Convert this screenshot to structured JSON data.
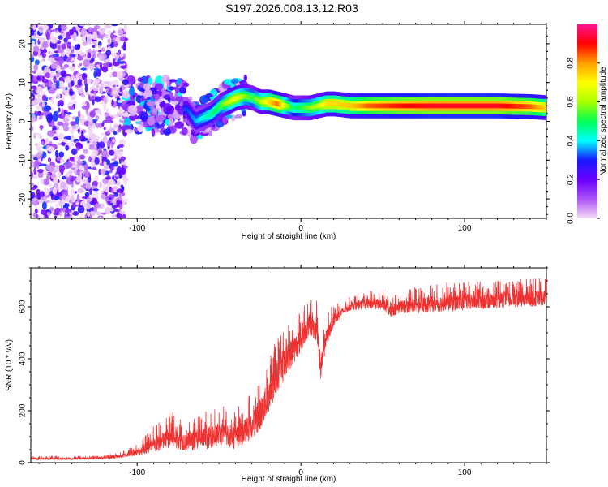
{
  "title": "S197.2026.008.13.12.R03",
  "chart_data": [
    {
      "type": "heatmap",
      "xlabel": "Height of straight line (km)",
      "ylabel": "Frequency (Hz)",
      "xlim": [
        -165,
        150
      ],
      "ylim": [
        -25,
        25
      ],
      "xticks": [
        -100,
        0,
        100
      ],
      "yticks": [
        -20,
        -10,
        0,
        10,
        20
      ],
      "colorbar": {
        "label": "Normalized spectral amplitude",
        "range": [
          0,
          1
        ],
        "ticks": [
          0.0,
          0.2,
          0.4,
          0.6,
          0.8
        ],
        "colors": [
          "#f4dcf4",
          "#ab52f7",
          "#6a00ff",
          "#1a1aff",
          "#00ffff",
          "#00ff55",
          "#aaff00",
          "#ffff00",
          "#ffa000",
          "#ff0000",
          "#ff1493"
        ]
      },
      "ridge": {
        "x": [
          -70,
          -65,
          -60,
          -55,
          -50,
          -45,
          -40,
          -35,
          -30,
          -25,
          -20,
          -15,
          -10,
          -5,
          0,
          5,
          10,
          15,
          20,
          30,
          40,
          60,
          80,
          100,
          120,
          140,
          150
        ],
        "freq": [
          3,
          0,
          1,
          2,
          4,
          5,
          6,
          6.5,
          6,
          5,
          5,
          4.5,
          4,
          3.5,
          3.5,
          3.5,
          4,
          4.5,
          4.5,
          4,
          4,
          4,
          4,
          4,
          4,
          3.8,
          3.5
        ],
        "amplitude": [
          0.3,
          0.35,
          0.4,
          0.45,
          0.5,
          0.6,
          0.65,
          0.55,
          0.5,
          0.6,
          0.7,
          0.8,
          0.6,
          0.45,
          0.5,
          0.55,
          0.6,
          0.7,
          0.7,
          0.72,
          0.8,
          0.85,
          0.88,
          0.88,
          0.88,
          0.8,
          0.7
        ]
      }
    },
    {
      "type": "line",
      "xlabel": "Height of straight line (km)",
      "ylabel": "SNR (10 * v/v)",
      "xlim": [
        -165,
        150
      ],
      "ylim": [
        0,
        750
      ],
      "xticks": [
        -100,
        0,
        100
      ],
      "yticks": [
        0,
        200,
        400,
        600
      ],
      "series": [
        {
          "name": "SNR",
          "color": "#ee3333",
          "x": [
            -165,
            -140,
            -120,
            -110,
            -100,
            -90,
            -80,
            -70,
            -60,
            -50,
            -40,
            -30,
            -25,
            -20,
            -15,
            -10,
            -5,
            0,
            5,
            8,
            10,
            12,
            15,
            20,
            25,
            30,
            40,
            50,
            55,
            60,
            70,
            80,
            90,
            100,
            110,
            120,
            130,
            140,
            150
          ],
          "mean": [
            15,
            15,
            18,
            25,
            40,
            65,
            95,
            80,
            90,
            110,
            95,
            140,
            185,
            250,
            320,
            380,
            430,
            470,
            530,
            520,
            510,
            350,
            470,
            550,
            580,
            600,
            612,
            610,
            580,
            600,
            605,
            610,
            615,
            618,
            620,
            625,
            628,
            630,
            635
          ],
          "spread": [
            8,
            8,
            10,
            12,
            25,
            60,
            80,
            70,
            80,
            90,
            85,
            100,
            120,
            130,
            130,
            120,
            110,
            90,
            80,
            90,
            90,
            90,
            70,
            50,
            30,
            30,
            40,
            45,
            40,
            50,
            55,
            60,
            65,
            65,
            60,
            60,
            60,
            60,
            60
          ]
        }
      ]
    }
  ]
}
